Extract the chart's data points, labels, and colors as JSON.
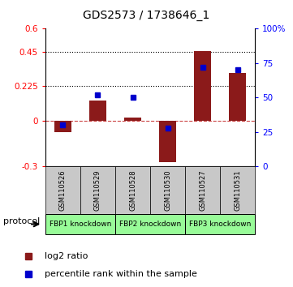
{
  "title": "GDS2573 / 1738646_1",
  "categories": [
    "GSM110526",
    "GSM110529",
    "GSM110528",
    "GSM110530",
    "GSM110527",
    "GSM110531"
  ],
  "log2_ratio": [
    -0.075,
    0.13,
    0.02,
    -0.27,
    0.455,
    0.31
  ],
  "percentile_rank_pct": [
    30,
    52,
    50,
    28,
    72,
    70
  ],
  "left_ylim": [
    -0.3,
    0.6
  ],
  "left_yticks": [
    -0.3,
    0,
    0.225,
    0.45,
    0.6
  ],
  "left_yticklabels": [
    "-0.3",
    "0",
    "0.225",
    "0.45",
    "0.6"
  ],
  "right_ylim": [
    0,
    100
  ],
  "right_yticks": [
    0,
    25,
    50,
    75,
    100
  ],
  "right_yticklabels": [
    "0",
    "25",
    "50",
    "75",
    "100%"
  ],
  "hline_y": [
    0.225,
    0.45
  ],
  "zero_line_y": 0,
  "bar_color": "#8B1A1A",
  "dot_color": "#0000CC",
  "protocol_groups": [
    {
      "label": "FBP1 knockdown",
      "start": 0,
      "end": 1
    },
    {
      "label": "FBP2 knockdown",
      "start": 2,
      "end": 3
    },
    {
      "label": "FBP3 knockdown",
      "start": 4,
      "end": 5
    }
  ],
  "legend_bar_label": "log2 ratio",
  "legend_dot_label": "percentile rank within the sample",
  "protocol_label": "protocol",
  "sample_bg": "#C8C8C8",
  "protocol_bg": "#98FB98"
}
